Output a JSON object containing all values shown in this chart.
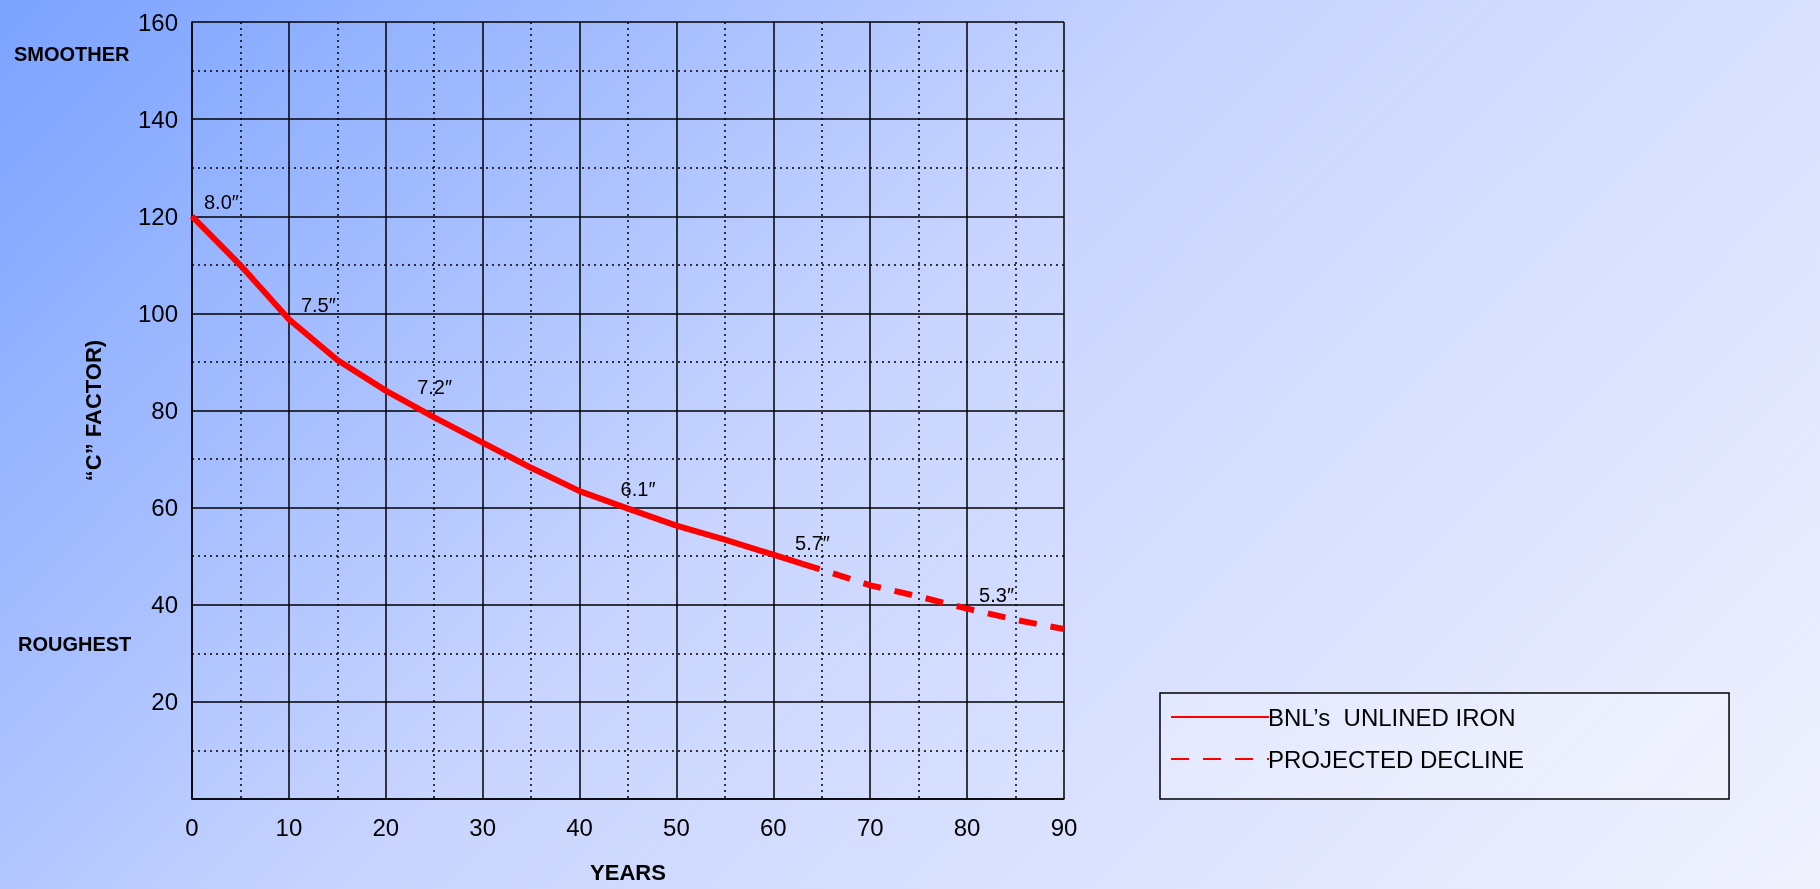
{
  "chart_data": {
    "type": "line",
    "xlabel": "YEARS",
    "ylabel": "“C” FACTOR)",
    "series": [
      {
        "name": "BNL’s  UNLINED IRON",
        "color": "#ff0000",
        "line_style": "solid",
        "x": [
          0,
          5,
          10,
          15,
          20,
          25,
          30,
          35,
          40,
          45,
          50,
          55,
          60,
          63
        ],
        "values": [
          120,
          109.9,
          98.8,
          90.4,
          84.1,
          78.6,
          73.4,
          68.2,
          63.4,
          59.8,
          56.3,
          53.4,
          50.3,
          48.4
        ]
      },
      {
        "name": "PROJECTED DECLINE",
        "color": "#ff0000",
        "line_style": "dashed",
        "x": [
          63,
          65,
          70,
          75,
          80,
          85,
          90
        ],
        "values": [
          48.4,
          47.2,
          44,
          41.7,
          39.2,
          36.9,
          35
        ]
      }
    ],
    "annotations": [
      "SMOOTHER",
      "ROUGHEST",
      {
        "text": "8.0″",
        "x": 0,
        "y": 120
      },
      {
        "text": "7.5″",
        "x": 10,
        "y": 98.8
      },
      {
        "text": "7.2″",
        "x": 22,
        "y": 82
      },
      {
        "text": "6.1″",
        "x": 43,
        "y": 61
      },
      {
        "text": "5.7″",
        "x": 61,
        "y": 49.8
      },
      {
        "text": "5.3″",
        "x": 80,
        "y": 39.2
      }
    ],
    "xlim": [
      0,
      90
    ],
    "xticks": [
      0,
      10,
      20,
      30,
      40,
      50,
      60,
      70,
      80,
      90
    ],
    "ylim": [
      0,
      160
    ],
    "yticks": [
      {
        "value": 0,
        "label": null
      },
      20,
      40,
      60,
      80,
      100,
      120,
      140,
      160
    ],
    "grid": true,
    "legend": "right",
    "marker": "none"
  }
}
